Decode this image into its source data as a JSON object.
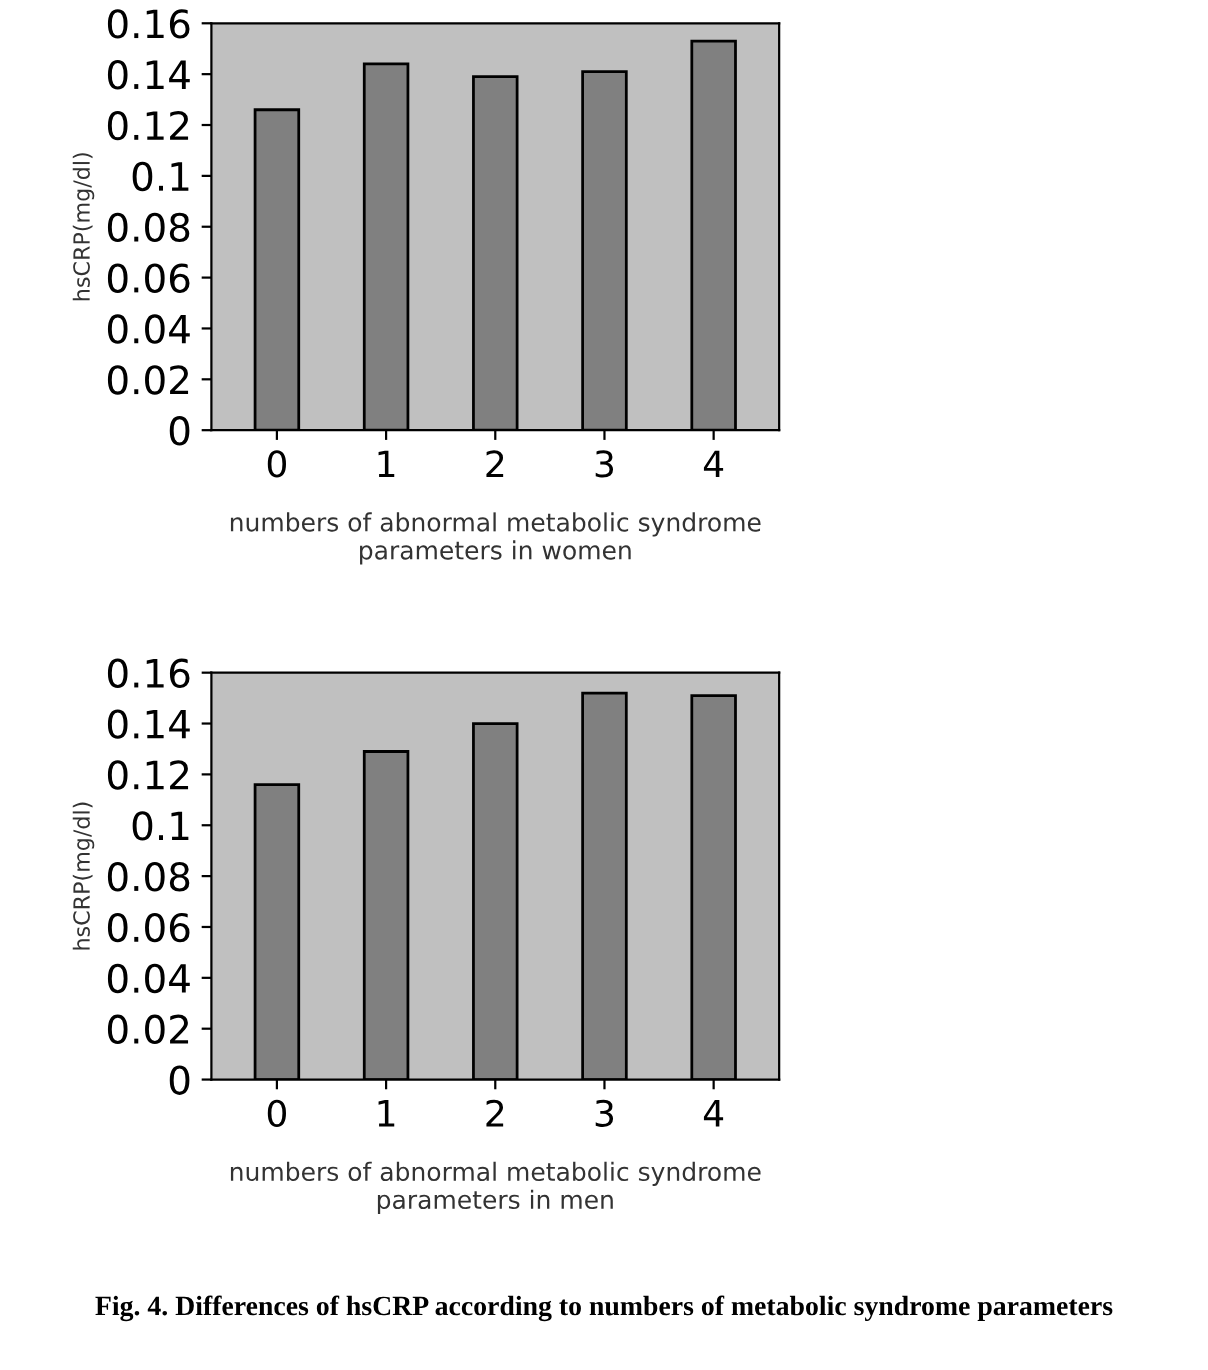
{
  "chart_data": [
    {
      "type": "bar",
      "categories": [
        "0",
        "1",
        "2",
        "3",
        "4"
      ],
      "values": [
        0.126,
        0.144,
        0.139,
        0.141,
        0.153
      ],
      "color": "#808080",
      "ylabel": "hsCRP(mg/dl)",
      "xlabel": "numbers of abnormal metabolic syndrome\nparameters in women",
      "ylim": [
        0,
        0.16
      ],
      "yticks": [
        0,
        0.02,
        0.04,
        0.06,
        0.08,
        0.1,
        0.12,
        0.14,
        0.16
      ],
      "grid": false
    },
    {
      "type": "bar",
      "categories": [
        "0",
        "1",
        "2",
        "3",
        "4"
      ],
      "values": [
        0.116,
        0.129,
        0.14,
        0.152,
        0.151
      ],
      "color": "#808080",
      "ylabel": "hsCRP(mg/dl)",
      "xlabel": "numbers of abnormal metabolic syndrome\nparameters in men",
      "ylim": [
        0,
        0.16
      ],
      "yticks": [
        0,
        0.02,
        0.04,
        0.06,
        0.08,
        0.1,
        0.12,
        0.14,
        0.16
      ],
      "grid": false,
      "annotations": [
        "Fig. 4. Differences of hsCRP according to numbers of metabolic syndrome parameters"
      ]
    }
  ]
}
